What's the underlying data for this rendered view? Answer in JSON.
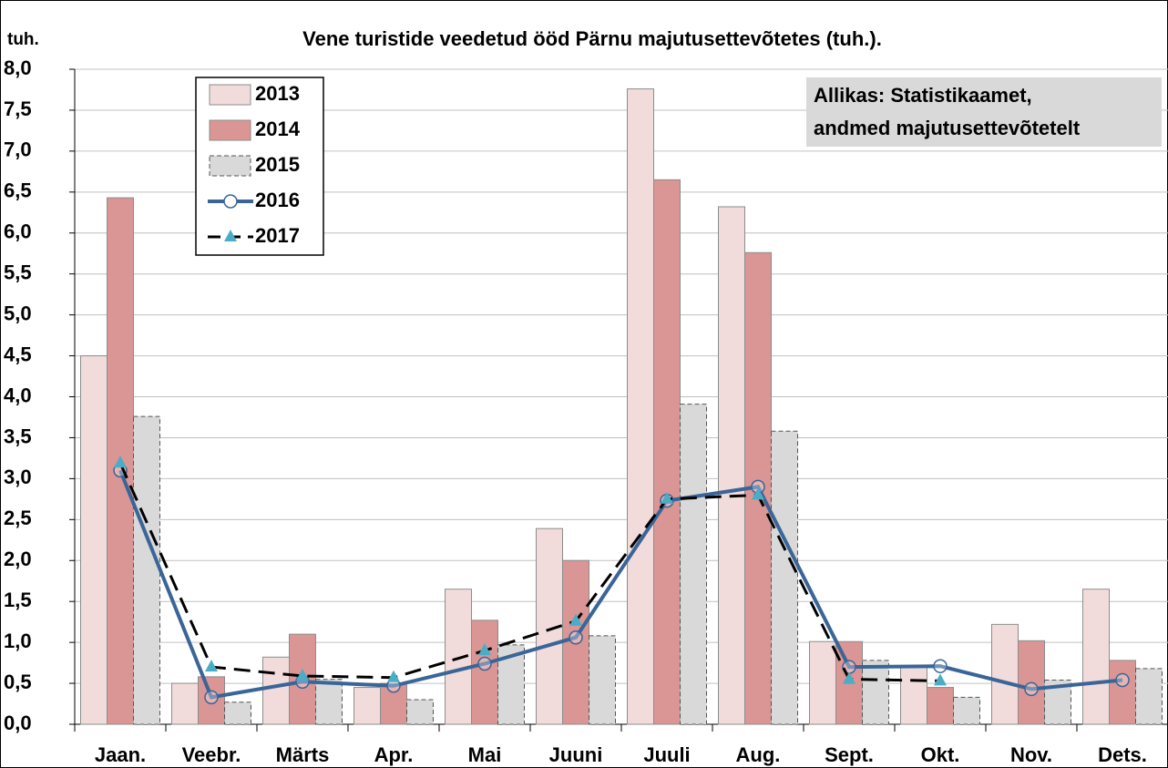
{
  "chart_data": {
    "type": "bar_line",
    "title": "Vene turistide veedetud ööd Pärnu majutusettevõtetes (tuh.).",
    "y_label": "tuh.",
    "annotation": [
      "Allikas: Statistikaamet,",
      "andmed majutusettevõtetelt"
    ],
    "categories": [
      "Jaan.",
      "Veebr.",
      "Märts",
      "Apr.",
      "Mai",
      "Juuni",
      "Juuli",
      "Aug.",
      "Sept.",
      "Okt.",
      "Nov.",
      "Dets."
    ],
    "series": [
      {
        "name": "2013",
        "kind": "bar",
        "color": "#f2dcdb",
        "values": [
          4.5,
          0.5,
          0.82,
          0.45,
          1.65,
          2.39,
          7.76,
          6.32,
          1.01,
          0.7,
          1.22,
          1.65
        ]
      },
      {
        "name": "2014",
        "kind": "bar",
        "color": "#d99694",
        "values": [
          6.43,
          0.58,
          1.1,
          0.5,
          1.27,
          2.0,
          6.65,
          5.76,
          1.01,
          0.45,
          1.02,
          0.78
        ]
      },
      {
        "name": "2015",
        "kind": "bar",
        "color": "#d9d9d9",
        "values": [
          3.76,
          0.27,
          0.55,
          0.3,
          0.97,
          1.08,
          3.91,
          3.58,
          0.78,
          0.33,
          0.54,
          0.68
        ]
      },
      {
        "name": "2016",
        "kind": "line",
        "color": "#3a6598",
        "values": [
          3.1,
          0.33,
          0.52,
          0.47,
          0.74,
          1.06,
          2.73,
          2.9,
          0.7,
          0.71,
          0.43,
          0.54
        ]
      },
      {
        "name": "2017",
        "kind": "line",
        "color": "#000000",
        "marker_color": "#4bacc6",
        "values": [
          3.19,
          0.7,
          0.59,
          0.57,
          0.9,
          1.26,
          2.75,
          2.8,
          0.55,
          0.53,
          null,
          null
        ]
      }
    ],
    "ylim": [
      0,
      8
    ],
    "yticks": [
      {
        "value": 0,
        "label": "0,0"
      },
      {
        "value": 0.5,
        "label": "0,5"
      },
      {
        "value": 1,
        "label": "1,0"
      },
      {
        "value": 1.5,
        "label": "1,5"
      },
      {
        "value": 2,
        "label": "2,0"
      },
      {
        "value": 2.5,
        "label": "2,5"
      },
      {
        "value": 3,
        "label": "3,0"
      },
      {
        "value": 3.5,
        "label": "3,5"
      },
      {
        "value": 4,
        "label": "4,0"
      },
      {
        "value": 4.5,
        "label": "4,5"
      },
      {
        "value": 5,
        "label": "5,0"
      },
      {
        "value": 5.5,
        "label": "5,5"
      },
      {
        "value": 6,
        "label": "6,0"
      },
      {
        "value": 6.5,
        "label": "6,5"
      },
      {
        "value": 7,
        "label": "7,0"
      },
      {
        "value": 7.5,
        "label": "7,5"
      },
      {
        "value": 8,
        "label": "8,0"
      }
    ],
    "grid": true
  }
}
